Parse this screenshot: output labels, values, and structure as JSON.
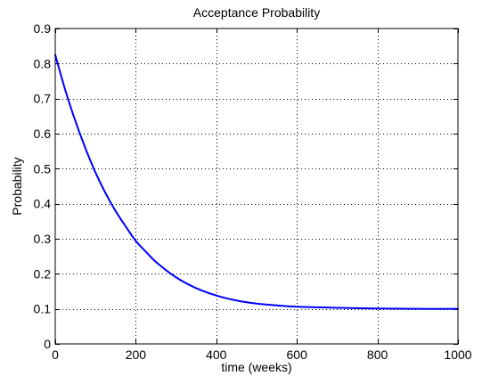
{
  "chart_data": {
    "type": "line",
    "title": "Acceptance Probability",
    "xlabel": "time (weeks)",
    "ylabel": "Probability",
    "xlim": [
      0,
      1000
    ],
    "ylim": [
      0,
      0.9
    ],
    "xticks": [
      0,
      200,
      400,
      600,
      800,
      1000
    ],
    "xtick_labels": [
      "0",
      "200",
      "400",
      "600",
      "800",
      "1000"
    ],
    "yticks": [
      0,
      0.1,
      0.2,
      0.3,
      0.4,
      0.5,
      0.6,
      0.7,
      0.8,
      0.9
    ],
    "ytick_labels": [
      "0",
      "0.1",
      "0.2",
      "0.3",
      "0.4",
      "0.5",
      "0.6",
      "0.7",
      "0.8",
      "0.9"
    ],
    "grid": true,
    "series": [
      {
        "color": "#0000ff",
        "x": [
          0,
          25,
          50,
          75,
          100,
          125,
          150,
          175,
          200,
          225,
          250,
          300,
          350,
          400,
          450,
          500,
          550,
          600,
          700,
          800,
          900,
          1000
        ],
        "y": [
          0.825,
          0.724,
          0.636,
          0.558,
          0.489,
          0.43,
          0.379,
          0.335,
          0.294,
          0.263,
          0.234,
          0.19,
          0.159,
          0.138,
          0.124,
          0.115,
          0.11,
          0.106,
          0.103,
          0.101,
          0.1,
          0.1
        ]
      }
    ]
  }
}
